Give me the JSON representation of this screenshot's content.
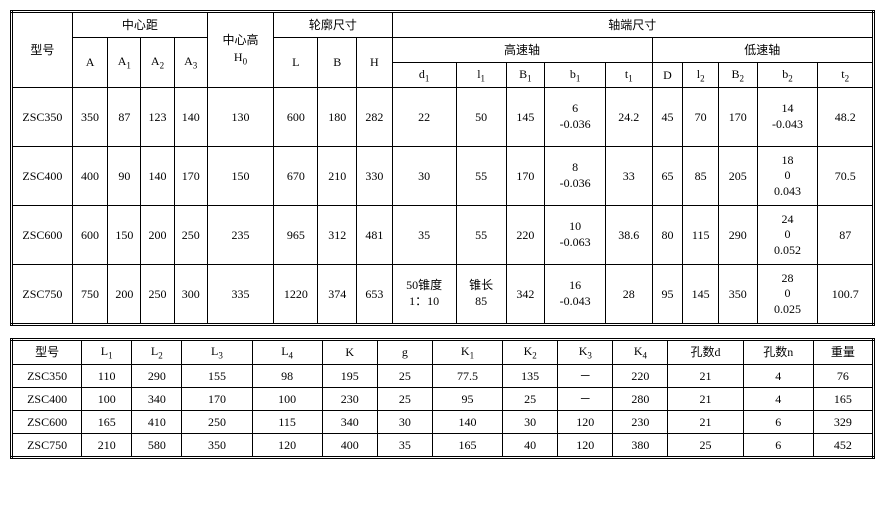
{
  "table1": {
    "headers": {
      "model": "型号",
      "center_dist": "中心距",
      "A": "A",
      "A1": "A",
      "A2": "A",
      "A3": "A",
      "center_height": "中心高",
      "H0": "H",
      "profile_dim": "轮廓尺寸",
      "L": "L",
      "B": "B",
      "H": "H",
      "shaft_end": "轴端尺寸",
      "high_speed": "高速轴",
      "low_speed": "低速轴",
      "d1": "d",
      "l1": "l",
      "B1": "B",
      "b1": "b",
      "t1": "t",
      "D": "D",
      "l2": "l",
      "B2": "B",
      "b2": "b",
      "t2": "t"
    },
    "rows": [
      {
        "model": "ZSC350",
        "A": "350",
        "A1": "87",
        "A2": "123",
        "A3": "140",
        "H0": "130",
        "L": "600",
        "B": "180",
        "H": "282",
        "d1": "22",
        "l1": "50",
        "B1": "145",
        "b1": "6\n-0.036",
        "t1": "24.2",
        "D": "45",
        "l2": "70",
        "B2": "170",
        "b2": "14\n-0.043",
        "t2": "48.2"
      },
      {
        "model": "ZSC400",
        "A": "400",
        "A1": "90",
        "A2": "140",
        "A3": "170",
        "H0": "150",
        "L": "670",
        "B": "210",
        "H": "330",
        "d1": "30",
        "l1": "55",
        "B1": "170",
        "b1": "8\n-0.036",
        "t1": "33",
        "D": "65",
        "l2": "85",
        "B2": "205",
        "b2": "18\n0\n0.043",
        "t2": "70.5"
      },
      {
        "model": "ZSC600",
        "A": "600",
        "A1": "150",
        "A2": "200",
        "A3": "250",
        "H0": "235",
        "L": "965",
        "B": "312",
        "H": "481",
        "d1": "35",
        "l1": "55",
        "B1": "220",
        "b1": "10\n-0.063",
        "t1": "38.6",
        "D": "80",
        "l2": "115",
        "B2": "290",
        "b2": "24\n0\n0.052",
        "t2": "87"
      },
      {
        "model": "ZSC750",
        "A": "750",
        "A1": "200",
        "A2": "250",
        "A3": "300",
        "H0": "335",
        "L": "1220",
        "B": "374",
        "H": "653",
        "d1": "50锥度\n1：10",
        "l1": "锥长\n85",
        "B1": "342",
        "b1": "16\n-0.043",
        "t1": "28",
        "D": "95",
        "l2": "145",
        "B2": "350",
        "b2": "28\n0\n0.025",
        "t2": "100.7"
      }
    ]
  },
  "table2": {
    "headers": {
      "model": "型号",
      "L1": "L",
      "L2": "L",
      "L3": "L",
      "L4": "L",
      "K": "K",
      "g": "g",
      "K1": "K",
      "K2": "K",
      "K3": "K",
      "K4": "K",
      "hole_d": "孔数d",
      "hole_n": "孔数n",
      "weight": "重量"
    },
    "rows": [
      {
        "model": "ZSC350",
        "L1": "110",
        "L2": "290",
        "L3": "155",
        "L4": "98",
        "K": "195",
        "g": "25",
        "K1": "77.5",
        "K2": "135",
        "K3": "－",
        "K4": "220",
        "d": "21",
        "n": "4",
        "w": "76"
      },
      {
        "model": "ZSC400",
        "L1": "100",
        "L2": "340",
        "L3": "170",
        "L4": "100",
        "K": "230",
        "g": "25",
        "K1": "95",
        "K2": "25",
        "K3": "－",
        "K4": "280",
        "d": "21",
        "n": "4",
        "w": "165"
      },
      {
        "model": "ZSC600",
        "L1": "165",
        "L2": "410",
        "L3": "250",
        "L4": "115",
        "K": "340",
        "g": "30",
        "K1": "140",
        "K2": "30",
        "K3": "120",
        "K4": "230",
        "d": "21",
        "n": "6",
        "w": "329"
      },
      {
        "model": "ZSC750",
        "L1": "210",
        "L2": "580",
        "L3": "350",
        "L4": "120",
        "K": "400",
        "g": "35",
        "K1": "165",
        "K2": "40",
        "K3": "120",
        "K4": "380",
        "d": "25",
        "n": "6",
        "w": "452"
      }
    ]
  }
}
